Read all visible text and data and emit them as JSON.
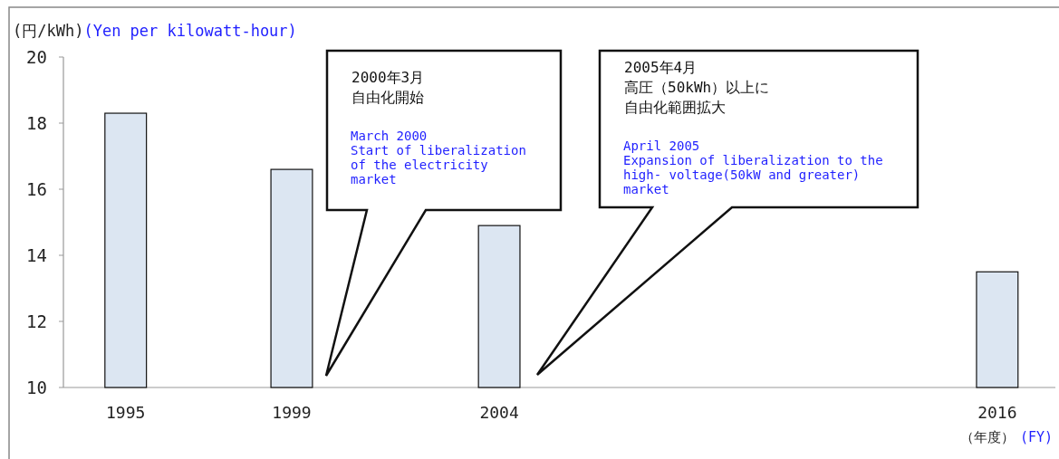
{
  "chart_data": {
    "type": "bar",
    "x": [
      1995,
      1999,
      2004,
      2016
    ],
    "values": [
      18.3,
      16.6,
      14.9,
      13.5
    ],
    "color": "#dce6f2",
    "xlim": [
      1993.5,
      2017.4
    ],
    "xticks": [
      1995,
      1999,
      2004,
      2016
    ],
    "ylim": [
      10,
      20
    ],
    "yticks": [
      10,
      12,
      14,
      16,
      18,
      20
    ],
    "ylabel": "(円/kWh)",
    "xlabel": "（年度）",
    "grid": false,
    "annotations": [
      "2000年3月",
      "自由化開始",
      "March 2000\nStart of liberalization\nof the electricity\nmarket",
      "2005年4月",
      "高圧（50kWh）以上に",
      "自由化範囲拡大",
      "April 2005\nExpansion of liberalization to the\nhigh- voltage(50kW and greater)\nmarket",
      "(Yen per kilowatt-hour)",
      "(FY)"
    ]
  }
}
